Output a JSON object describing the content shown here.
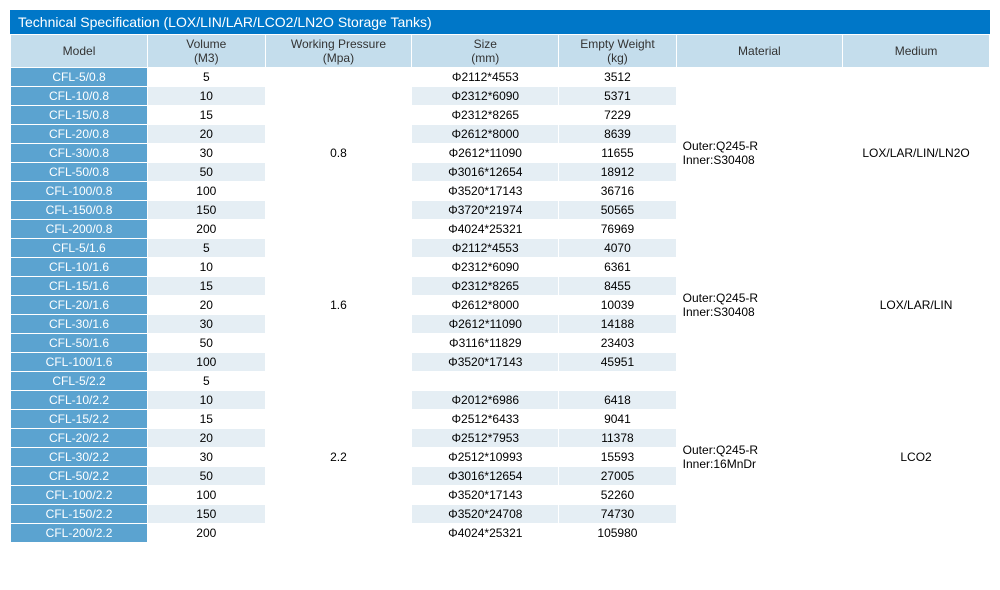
{
  "title": "Technical Specification (LOX/LIN/LAR/LCO2/LN2O Storage Tanks)",
  "headers": {
    "model": "Model",
    "volume_l1": "Volume",
    "volume_l2": "(M3)",
    "wp_l1": "Working Pressure",
    "wp_l2": "(Mpa)",
    "size_l1": "Size",
    "size_l2": "(mm)",
    "weight_l1": "Empty Weight",
    "weight_l2": "(kg)",
    "material": "Material",
    "medium": "Medium"
  },
  "groups": [
    {
      "working_pressure": "0.8",
      "material_l1": "Outer:Q245-R",
      "material_l2": "Inner:S30408",
      "medium": "LOX/LAR/LIN/LN2O",
      "rows": [
        {
          "model": "CFL-5/0.8",
          "volume": "5",
          "size": "Φ2112*4553",
          "weight": "3512"
        },
        {
          "model": "CFL-10/0.8",
          "volume": "10",
          "size": "Φ2312*6090",
          "weight": "5371"
        },
        {
          "model": "CFL-15/0.8",
          "volume": "15",
          "size": "Φ2312*8265",
          "weight": "7229"
        },
        {
          "model": "CFL-20/0.8",
          "volume": "20",
          "size": "Φ2612*8000",
          "weight": "8639"
        },
        {
          "model": "CFL-30/0.8",
          "volume": "30",
          "size": "Φ2612*11090",
          "weight": "11655"
        },
        {
          "model": "CFL-50/0.8",
          "volume": "50",
          "size": "Φ3016*12654",
          "weight": "18912"
        },
        {
          "model": "CFL-100/0.8",
          "volume": "100",
          "size": "Φ3520*17143",
          "weight": "36716"
        },
        {
          "model": "CFL-150/0.8",
          "volume": "150",
          "size": "Φ3720*21974",
          "weight": "50565"
        },
        {
          "model": "CFL-200/0.8",
          "volume": "200",
          "size": "Φ4024*25321",
          "weight": "76969"
        }
      ]
    },
    {
      "working_pressure": "1.6",
      "material_l1": "Outer:Q245-R",
      "material_l2": "Inner:S30408",
      "medium": "LOX/LAR/LIN",
      "rows": [
        {
          "model": "CFL-5/1.6",
          "volume": "5",
          "size": "Φ2112*4553",
          "weight": "4070"
        },
        {
          "model": "CFL-10/1.6",
          "volume": "10",
          "size": "Φ2312*6090",
          "weight": "6361"
        },
        {
          "model": "CFL-15/1.6",
          "volume": "15",
          "size": "Φ2312*8265",
          "weight": "8455"
        },
        {
          "model": "CFL-20/1.6",
          "volume": "20",
          "size": "Φ2612*8000",
          "weight": "10039"
        },
        {
          "model": "CFL-30/1.6",
          "volume": "30",
          "size": "Φ2612*11090",
          "weight": "14188"
        },
        {
          "model": "CFL-50/1.6",
          "volume": "50",
          "size": "Φ3116*11829",
          "weight": "23403"
        },
        {
          "model": "CFL-100/1.6",
          "volume": "100",
          "size": "Φ3520*17143",
          "weight": "45951"
        }
      ]
    },
    {
      "working_pressure": "2.2",
      "material_l1": "Outer:Q245-R",
      "material_l2": "Inner:16MnDr",
      "medium": "LCO2",
      "rows": [
        {
          "model": "CFL-5/2.2",
          "volume": "5",
          "size": "",
          "weight": ""
        },
        {
          "model": "CFL-10/2.2",
          "volume": "10",
          "size": "Φ2012*6986",
          "weight": "6418"
        },
        {
          "model": "CFL-15/2.2",
          "volume": "15",
          "size": "Φ2512*6433",
          "weight": "9041"
        },
        {
          "model": "CFL-20/2.2",
          "volume": "20",
          "size": "Φ2512*7953",
          "weight": "11378"
        },
        {
          "model": "CFL-30/2.2",
          "volume": "30",
          "size": "Φ2512*10993",
          "weight": "15593"
        },
        {
          "model": "CFL-50/2.2",
          "volume": "50",
          "size": "Φ3016*12654",
          "weight": "27005"
        },
        {
          "model": "CFL-100/2.2",
          "volume": "100",
          "size": "Φ3520*17143",
          "weight": "52260"
        },
        {
          "model": "CFL-150/2.2",
          "volume": "150",
          "size": "Φ3520*24708",
          "weight": "74730"
        },
        {
          "model": "CFL-200/2.2",
          "volume": "200",
          "size": "Φ4024*25321",
          "weight": "105980"
        }
      ]
    }
  ],
  "colors": {
    "title_bg": "#0077c8",
    "header_bg": "#c4ddec",
    "model_bg": "#5ba3d0",
    "row_odd_bg": "#e5eef4",
    "row_even_bg": "#ffffff"
  }
}
